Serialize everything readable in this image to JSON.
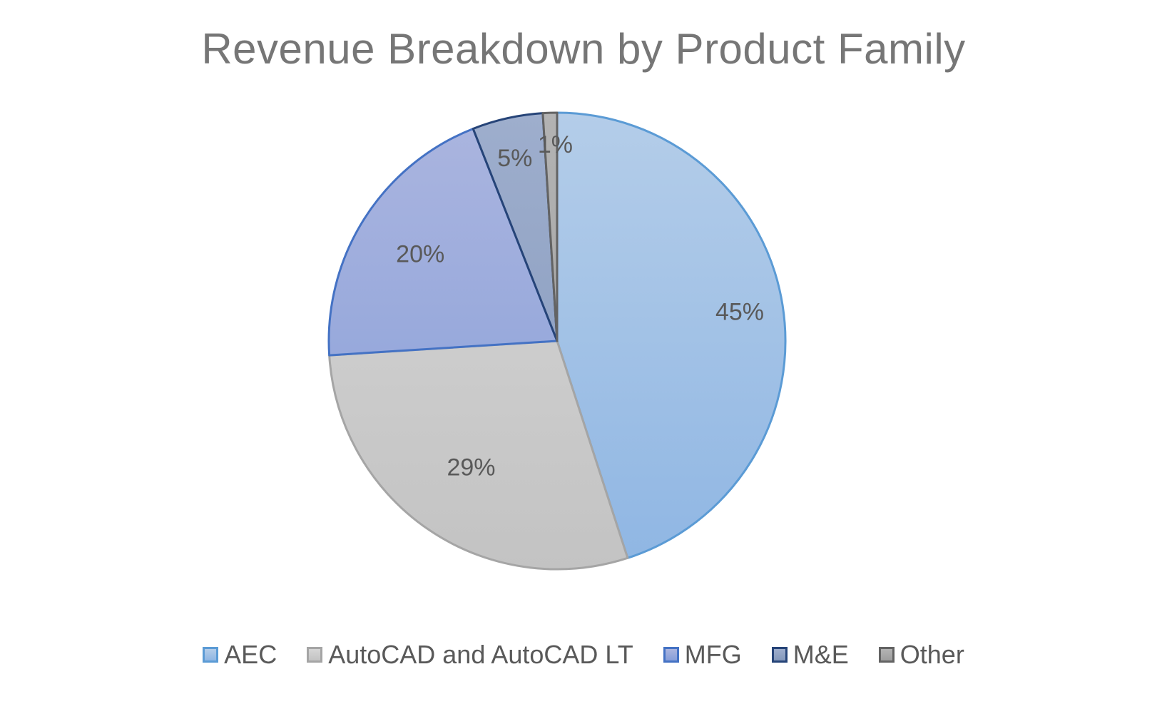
{
  "chart_data": {
    "type": "pie",
    "title": "Revenue Breakdown by Product Family",
    "categories": [
      "AEC",
      "AutoCAD and AutoCAD LT",
      "MFG",
      "M&E",
      "Other"
    ],
    "values": [
      45,
      29,
      20,
      5,
      1
    ],
    "data_labels": [
      "45%",
      "29%",
      "20%",
      "5%",
      "1%"
    ],
    "colors": {
      "AEC": {
        "fill_top": "#b4cde9",
        "fill_bottom": "#8fb6e3",
        "stroke": "#5b9bd5"
      },
      "AutoCAD and AutoCAD LT": {
        "fill_top": "#d6d6d6",
        "fill_bottom": "#c3c3c3",
        "stroke": "#a5a5a5"
      },
      "MFG": {
        "fill_top": "#abb5df",
        "fill_bottom": "#869ed9",
        "stroke": "#4472c4"
      },
      "M&E": {
        "fill_top": "#9eaecd",
        "fill_bottom": "#8498bb",
        "stroke": "#264478"
      },
      "Other": {
        "fill_top": "#b3b3b3",
        "fill_bottom": "#9e9e9e",
        "stroke": "#636363"
      }
    },
    "label_color": "#595959",
    "start_angle": "12 o'clock",
    "direction": "clockwise",
    "legend_position": "bottom"
  }
}
